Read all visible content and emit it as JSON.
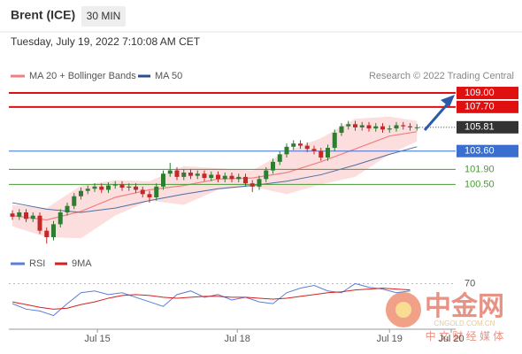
{
  "header": {
    "title": "Brent (ICE)",
    "interval": "30 MIN",
    "timestamp": "Tuesday, July 19, 2022 7:10:08 AM CET"
  },
  "watermark": {
    "name": "中金网",
    "site": "CNGOLD.COM.CN",
    "tagline": "中 文 财 经 媒 体"
  },
  "chart_data": {
    "type": "candlestick",
    "legend": {
      "bands": "MA 20 + Bollinger Bands",
      "ma50": "MA 50",
      "source": "Research © 2022 Trading Central",
      "rsi": "RSI",
      "rsi_ma": "9MA"
    },
    "colors": {
      "up": "#2e7d32",
      "down": "#c62828",
      "ma20": "#f08080",
      "band": "#fbd6d6",
      "ma50": "#4a6fa5",
      "rsi": "#5b7fd6",
      "rsi_ma": "#d62020"
    },
    "xlim": [
      0,
      64
    ],
    "ylim": [
      94.2,
      110.4
    ],
    "xticks": [
      {
        "value": 12.4,
        "label": "Jul 15"
      },
      {
        "value": 32.8,
        "label": "Jul 18"
      },
      {
        "value": 55,
        "label": "Jul 19"
      },
      {
        "value": 64,
        "label": "Jul 20"
      }
    ],
    "open": [
      97.8,
      97.5,
      97.9,
      97.3,
      97.6,
      96.2,
      95.6,
      96.8,
      97.9,
      98.5,
      99.4,
      99.9,
      100.1,
      100.3,
      100.0,
      100.4,
      100.5,
      100.2,
      100.3,
      100.0,
      99.6,
      99.3,
      100.3,
      101.5,
      101.8,
      101.2,
      101.6,
      101.3,
      101.5,
      101.1,
      101.4,
      101.0,
      101.3,
      101.0,
      101.2,
      100.6,
      100.3,
      101.0,
      101.8,
      102.6,
      103.3,
      104.0,
      104.3,
      104.1,
      103.8,
      103.6,
      103.0,
      103.9,
      105.3,
      105.9,
      106.1,
      105.8,
      106.0,
      105.7,
      105.9,
      105.6,
      105.7,
      106.0,
      105.9,
      105.8
    ],
    "high": [
      98.1,
      98.2,
      98.2,
      97.9,
      97.9,
      96.5,
      97.1,
      98.2,
      98.8,
      99.7,
      100.2,
      100.4,
      100.6,
      100.6,
      100.7,
      100.8,
      100.8,
      100.6,
      100.6,
      100.3,
      99.9,
      100.6,
      101.8,
      102.5,
      102.1,
      101.9,
      101.9,
      101.8,
      101.8,
      101.7,
      101.7,
      101.6,
      101.6,
      101.5,
      101.5,
      100.9,
      101.3,
      102.1,
      102.9,
      103.6,
      104.3,
      104.6,
      104.6,
      104.4,
      104.1,
      103.9,
      104.2,
      105.6,
      106.2,
      106.4,
      106.4,
      106.3,
      106.3,
      106.2,
      106.2,
      106.0,
      106.3,
      106.3,
      106.2,
      106.1
    ],
    "low": [
      97.2,
      97.2,
      97.0,
      97.0,
      95.9,
      95.0,
      95.3,
      96.5,
      97.6,
      98.2,
      99.1,
      99.6,
      99.8,
      99.7,
      99.7,
      100.1,
      99.9,
      99.9,
      99.7,
      99.3,
      98.8,
      99.0,
      100.0,
      101.2,
      100.9,
      100.9,
      101.0,
      101.0,
      100.8,
      100.8,
      100.7,
      100.7,
      100.7,
      100.7,
      100.3,
      99.8,
      100.0,
      100.7,
      101.5,
      102.3,
      103.0,
      103.7,
      103.8,
      103.5,
      103.3,
      102.7,
      102.7,
      103.6,
      105.0,
      105.6,
      105.5,
      105.5,
      105.4,
      105.4,
      105.3,
      105.3,
      105.4,
      105.6,
      105.5,
      105.5
    ],
    "close": [
      97.5,
      97.9,
      97.3,
      97.6,
      96.2,
      95.6,
      96.8,
      97.9,
      98.5,
      99.4,
      99.9,
      100.1,
      100.3,
      100.0,
      100.4,
      100.5,
      100.2,
      100.3,
      100.0,
      99.6,
      99.3,
      100.3,
      101.5,
      101.8,
      101.2,
      101.6,
      101.3,
      101.5,
      101.1,
      101.4,
      101.0,
      101.3,
      101.0,
      101.2,
      100.6,
      100.3,
      101.0,
      101.8,
      102.6,
      103.3,
      104.0,
      104.3,
      104.1,
      103.8,
      103.6,
      103.0,
      103.9,
      105.3,
      105.9,
      106.1,
      105.8,
      106.0,
      105.7,
      105.9,
      105.6,
      105.7,
      106.0,
      105.9,
      105.8,
      105.81
    ],
    "indicators": {
      "x": [
        0,
        5,
        10,
        15,
        20,
        25,
        30,
        35,
        40,
        45,
        50,
        55,
        59
      ],
      "ma20": [
        97.6,
        97.2,
        98.0,
        99.3,
        100.0,
        100.4,
        101.0,
        101.1,
        101.6,
        102.6,
        103.8,
        105.0,
        105.4
      ],
      "ma50": [
        98.8,
        98.2,
        97.9,
        98.3,
        99.0,
        99.6,
        100.1,
        100.4,
        100.8,
        101.4,
        102.3,
        103.3,
        104.0
      ],
      "bb_upper": [
        98.6,
        98.3,
        100.4,
        100.9,
        100.8,
        102.2,
        102.0,
        101.8,
        103.6,
        104.8,
        106.6,
        106.8,
        106.4
      ],
      "bb_lower": [
        96.6,
        95.6,
        95.5,
        97.6,
        99.0,
        98.6,
        100.0,
        100.3,
        99.6,
        100.5,
        101.2,
        103.3,
        104.5
      ]
    },
    "levels": [
      {
        "value": 109.0,
        "label": "109.00",
        "color": "#e01010",
        "style": "box"
      },
      {
        "value": 107.7,
        "label": "107.70",
        "color": "#e01010",
        "style": "box"
      },
      {
        "value": 105.81,
        "label": "105.81",
        "color": "#333333",
        "style": "current"
      },
      {
        "value": 103.6,
        "label": "103.60",
        "color": "#3a6fd0",
        "style": "box"
      },
      {
        "value": 101.9,
        "label": "101.90",
        "color": "#4a9a3a",
        "style": "text"
      },
      {
        "value": 100.5,
        "label": "100.50",
        "color": "#4a9a3a",
        "style": "text"
      }
    ],
    "rsi": {
      "ylim": [
        20,
        85
      ],
      "yticks": [
        70
      ],
      "x": [
        0,
        2,
        4,
        6,
        8,
        10,
        12,
        14,
        16,
        18,
        20,
        22,
        24,
        26,
        28,
        30,
        32,
        34,
        36,
        38,
        40,
        42,
        44,
        46,
        48,
        50,
        52,
        54,
        56,
        58
      ],
      "values": [
        48,
        42,
        40,
        35,
        48,
        60,
        62,
        58,
        60,
        55,
        50,
        45,
        58,
        62,
        55,
        58,
        52,
        55,
        50,
        48,
        60,
        65,
        68,
        62,
        60,
        70,
        66,
        64,
        60,
        62
      ],
      "ma": [
        50,
        47,
        44,
        42,
        43,
        47,
        50,
        54,
        57,
        58,
        57,
        55,
        54,
        55,
        56,
        56,
        55,
        55,
        54,
        53,
        54,
        56,
        58,
        60,
        61,
        63,
        64,
        65,
        64,
        63
      ]
    }
  }
}
